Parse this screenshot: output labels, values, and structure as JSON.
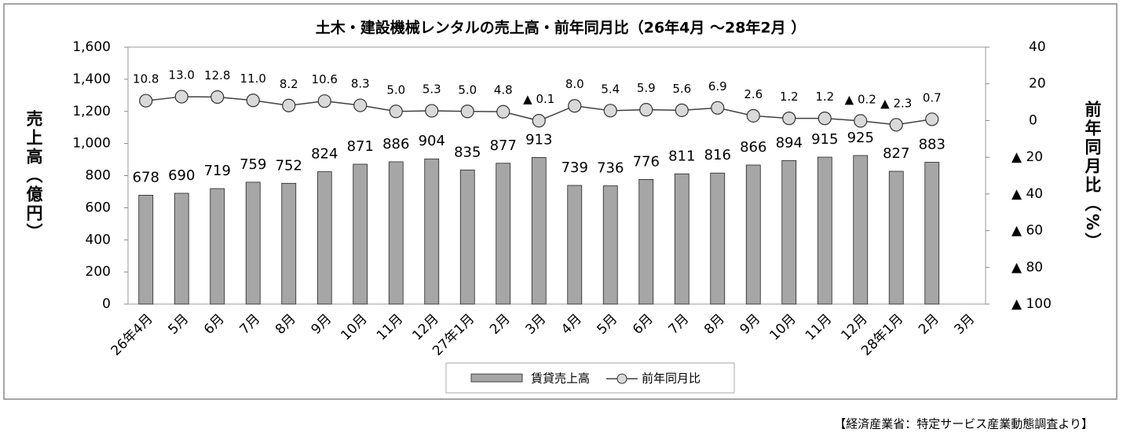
{
  "chart_data": {
    "type": "bar_line",
    "title": "土木・建設機械レンタルの売上高・前年同月比（26年4月 ～28年2月 ）",
    "y_label": "売上高（億円）",
    "y2_label": "前年同月比（%）",
    "source": "【経済産業省：特定サービス産業動態調査より】",
    "categories": [
      "26年4月",
      "5月",
      "6月",
      "7月",
      "8月",
      "9月",
      "10月",
      "11月",
      "12月",
      "27年1月",
      "2月",
      "3月",
      "4月",
      "5月",
      "6月",
      "7月",
      "8月",
      "9月",
      "10月",
      "11月",
      "12月",
      "28年1月",
      "2月",
      "3月"
    ],
    "series": [
      {
        "name": "賃貸売上高",
        "color": "#a6a6a6",
        "kind": "bar",
        "values": [
          678,
          690,
          719,
          759,
          752,
          824,
          871,
          886,
          904,
          835,
          877,
          913,
          739,
          736,
          776,
          811,
          816,
          866,
          894,
          915,
          925,
          827,
          883,
          null
        ]
      },
      {
        "name": "前年同月比",
        "color": "#404040",
        "marker_color": "#d9d9d9",
        "kind": "line",
        "axis": "y2",
        "values": [
          10.8,
          13.0,
          12.8,
          11.0,
          8.2,
          10.6,
          8.3,
          5.0,
          5.3,
          5.0,
          4.8,
          -0.1,
          8.0,
          5.4,
          5.9,
          5.6,
          6.9,
          2.6,
          1.2,
          1.2,
          -0.2,
          -2.3,
          0.7,
          null
        ],
        "value_labels": [
          "10.8",
          "13.0",
          "12.8",
          "11.0",
          "8.2",
          "10.6",
          "8.3",
          "5.0",
          "5.3",
          "5.0",
          "4.8",
          "▲ 0.1",
          "8.0",
          "5.4",
          "5.9",
          "5.6",
          "6.9",
          "2.6",
          "1.2",
          "1.2",
          "▲ 0.2",
          "▲ 2.3",
          "0.7",
          null
        ]
      }
    ],
    "ylim": [
      0,
      1600
    ],
    "yticks": [
      0,
      200,
      400,
      600,
      800,
      {
        "value": 1000,
        "label": "1,000"
      },
      {
        "value": 1200,
        "label": "1,200"
      },
      {
        "value": 1400,
        "label": "1,400"
      },
      {
        "value": 1600,
        "label": "1,600"
      }
    ],
    "y2lim": [
      -100,
      40
    ],
    "y2ticks": [
      {
        "value": -100,
        "label": "▲ 100"
      },
      {
        "value": -80,
        "label": "▲ 80"
      },
      {
        "value": -60,
        "label": "▲ 60"
      },
      {
        "value": -40,
        "label": "▲ 40"
      },
      {
        "value": -20,
        "label": "▲ 20"
      },
      0,
      20,
      40
    ],
    "grid": false,
    "legend": "bottom"
  }
}
